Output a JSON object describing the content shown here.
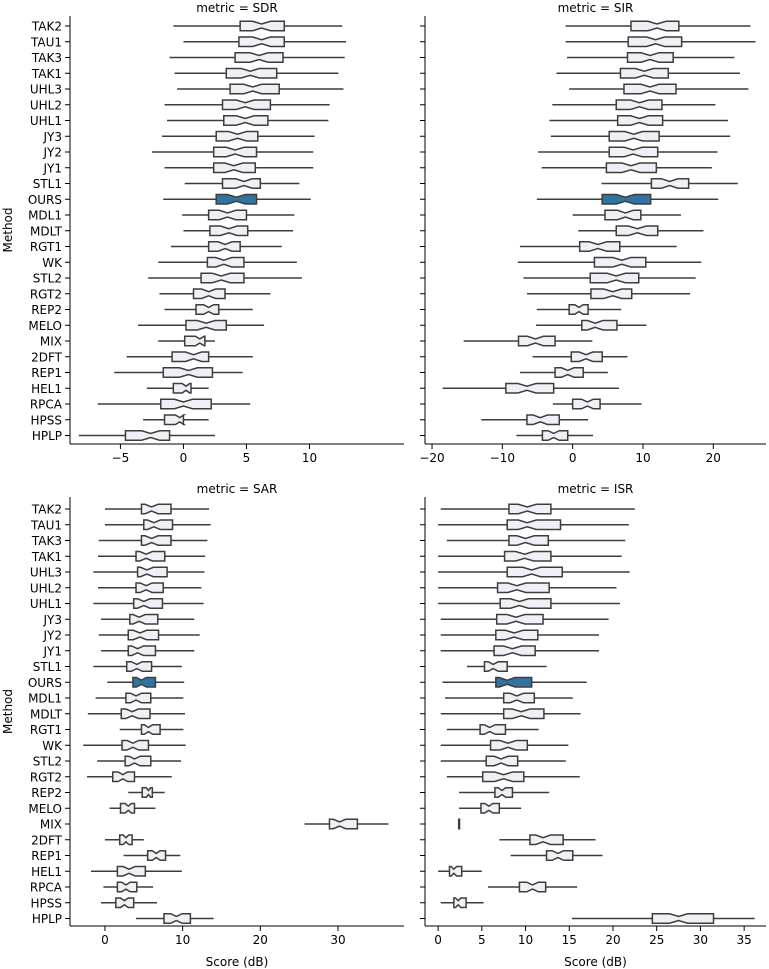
{
  "chart_data": {
    "type": "boxplot",
    "shared_y_axis": {
      "label": "Method",
      "categories": [
        "TAK2",
        "TAU1",
        "TAK3",
        "TAK1",
        "UHL3",
        "UHL2",
        "UHL1",
        "JY3",
        "JY2",
        "JY1",
        "STL1",
        "OURS",
        "MDL1",
        "MDLT",
        "RGT1",
        "WK",
        "STL2",
        "RGT2",
        "REP2",
        "MELO",
        "MIX",
        "2DFT",
        "REP1",
        "HEL1",
        "RPCA",
        "HPSS",
        "HPLP"
      ]
    },
    "x_label": "Score (dB)",
    "highlight": {
      "category": "OURS",
      "color": "#3274a1"
    },
    "box_fill": "#eef0f5",
    "panels": [
      {
        "title": "metric = SDR",
        "xlim": [
          -9,
          17.5
        ],
        "xticks": [
          -5,
          0,
          5,
          10
        ],
        "tick_labels": [
          "−5",
          "0",
          "5",
          "10"
        ],
        "boxes": [
          {
            "lo": -0.8,
            "q1": 4.5,
            "med": 6.2,
            "q3": 8.0,
            "hi": 12.6
          },
          {
            "lo": 0.0,
            "q1": 4.4,
            "med": 6.2,
            "q3": 8.0,
            "hi": 12.9
          },
          {
            "lo": -1.1,
            "q1": 4.1,
            "med": 6.0,
            "q3": 7.9,
            "hi": 12.8
          },
          {
            "lo": -0.7,
            "q1": 3.4,
            "med": 5.3,
            "q3": 7.4,
            "hi": 12.3
          },
          {
            "lo": -0.5,
            "q1": 3.7,
            "med": 5.5,
            "q3": 7.6,
            "hi": 12.7
          },
          {
            "lo": -1.5,
            "q1": 3.1,
            "med": 4.9,
            "q3": 6.9,
            "hi": 11.6
          },
          {
            "lo": -1.3,
            "q1": 3.2,
            "med": 4.9,
            "q3": 6.7,
            "hi": 11.5
          },
          {
            "lo": -1.7,
            "q1": 2.6,
            "med": 4.3,
            "q3": 5.9,
            "hi": 10.4
          },
          {
            "lo": -2.5,
            "q1": 2.4,
            "med": 4.1,
            "q3": 5.8,
            "hi": 10.3
          },
          {
            "lo": -1.5,
            "q1": 2.4,
            "med": 4.0,
            "q3": 5.7,
            "hi": 10.3
          },
          {
            "lo": 0.1,
            "q1": 3.1,
            "med": 4.8,
            "q3": 6.1,
            "hi": 9.2
          },
          {
            "lo": -1.6,
            "q1": 2.6,
            "med": 4.2,
            "q3": 5.8,
            "hi": 10.1
          },
          {
            "lo": -0.1,
            "q1": 2.0,
            "med": 3.5,
            "q3": 5.0,
            "hi": 8.8
          },
          {
            "lo": 0.0,
            "q1": 2.1,
            "med": 3.6,
            "q3": 5.1,
            "hi": 8.7
          },
          {
            "lo": -1.0,
            "q1": 2.0,
            "med": 3.3,
            "q3": 4.5,
            "hi": 7.8
          },
          {
            "lo": -2.0,
            "q1": 1.9,
            "med": 3.2,
            "q3": 4.8,
            "hi": 9.0
          },
          {
            "lo": -2.8,
            "q1": 1.4,
            "med": 3.0,
            "q3": 4.8,
            "hi": 9.4
          },
          {
            "lo": -1.9,
            "q1": 0.8,
            "med": 2.0,
            "q3": 3.3,
            "hi": 6.9
          },
          {
            "lo": -1.5,
            "q1": 1.0,
            "med": 2.0,
            "q3": 2.8,
            "hi": 5.5
          },
          {
            "lo": -3.6,
            "q1": 0.2,
            "med": 1.8,
            "q3": 3.4,
            "hi": 6.4
          },
          {
            "lo": -2.0,
            "q1": 0.1,
            "med": 1.3,
            "q3": 1.7,
            "hi": 2.5
          },
          {
            "lo": -4.5,
            "q1": -0.9,
            "med": 0.8,
            "q3": 2.0,
            "hi": 5.5
          },
          {
            "lo": -5.5,
            "q1": -1.6,
            "med": 0.4,
            "q3": 2.3,
            "hi": 4.7
          },
          {
            "lo": -2.9,
            "q1": -0.8,
            "med": 0.2,
            "q3": 0.6,
            "hi": 2.0
          },
          {
            "lo": -6.8,
            "q1": -1.8,
            "med": 0.0,
            "q3": 2.2,
            "hi": 5.3
          },
          {
            "lo": -3.2,
            "q1": -1.5,
            "med": -0.3,
            "q3": 0.0,
            "hi": 2.0
          },
          {
            "lo": -8.3,
            "q1": -4.6,
            "med": -2.6,
            "q3": -1.1,
            "hi": 2.5
          }
        ]
      },
      {
        "title": "metric = SIR",
        "xlim": [
          -21,
          27.5
        ],
        "xticks": [
          -20,
          -10,
          0,
          10,
          20
        ],
        "tick_labels": [
          "−20",
          "−10",
          "0",
          "10",
          "20"
        ],
        "boxes": [
          {
            "lo": -1.0,
            "q1": 8.3,
            "med": 12.0,
            "q3": 15.1,
            "hi": 25.3
          },
          {
            "lo": -1.0,
            "q1": 7.9,
            "med": 11.8,
            "q3": 15.5,
            "hi": 26.0
          },
          {
            "lo": -0.8,
            "q1": 7.8,
            "med": 11.0,
            "q3": 14.3,
            "hi": 23.0
          },
          {
            "lo": -2.3,
            "q1": 6.8,
            "med": 10.2,
            "q3": 13.6,
            "hi": 23.8
          },
          {
            "lo": -0.5,
            "q1": 7.3,
            "med": 11.0,
            "q3": 14.7,
            "hi": 25.0
          },
          {
            "lo": -2.9,
            "q1": 6.2,
            "med": 9.5,
            "q3": 12.7,
            "hi": 20.3
          },
          {
            "lo": -3.3,
            "q1": 6.4,
            "med": 9.5,
            "q3": 12.8,
            "hi": 22.1
          },
          {
            "lo": -3.1,
            "q1": 5.2,
            "med": 8.7,
            "q3": 12.3,
            "hi": 22.4
          },
          {
            "lo": -4.9,
            "q1": 5.2,
            "med": 8.6,
            "q3": 12.1,
            "hi": 20.6
          },
          {
            "lo": -4.4,
            "q1": 4.8,
            "med": 8.3,
            "q3": 11.9,
            "hi": 19.8
          },
          {
            "lo": 4.1,
            "q1": 11.2,
            "med": 13.8,
            "q3": 16.5,
            "hi": 23.5
          },
          {
            "lo": -5.1,
            "q1": 4.2,
            "med": 7.5,
            "q3": 11.1,
            "hi": 20.7
          },
          {
            "lo": 0.0,
            "q1": 4.6,
            "med": 7.5,
            "q3": 9.7,
            "hi": 15.4
          },
          {
            "lo": 0.8,
            "q1": 6.2,
            "med": 9.2,
            "q3": 12.1,
            "hi": 18.6
          },
          {
            "lo": -7.5,
            "q1": 1.0,
            "med": 3.6,
            "q3": 6.7,
            "hi": 14.8
          },
          {
            "lo": -7.8,
            "q1": 3.1,
            "med": 7.0,
            "q3": 10.4,
            "hi": 18.3
          },
          {
            "lo": -7.0,
            "q1": 2.5,
            "med": 6.2,
            "q3": 9.4,
            "hi": 17.5
          },
          {
            "lo": -6.5,
            "q1": 2.6,
            "med": 5.7,
            "q3": 8.4,
            "hi": 16.7
          },
          {
            "lo": -5.1,
            "q1": -0.5,
            "med": 0.9,
            "q3": 2.2,
            "hi": 6.9
          },
          {
            "lo": -5.2,
            "q1": 1.3,
            "med": 3.2,
            "q3": 6.3,
            "hi": 10.5
          },
          {
            "lo": -15.5,
            "q1": -7.7,
            "med": -5.3,
            "q3": -2.5,
            "hi": 2.8
          },
          {
            "lo": -5.7,
            "q1": -0.2,
            "med": 1.9,
            "q3": 4.2,
            "hi": 7.8
          },
          {
            "lo": -7.5,
            "q1": -2.5,
            "med": -0.7,
            "q3": 1.5,
            "hi": 5.0
          },
          {
            "lo": -18.5,
            "q1": -9.5,
            "med": -6.5,
            "q3": -2.7,
            "hi": 6.6
          },
          {
            "lo": -2.8,
            "q1": 0.0,
            "med": 2.1,
            "q3": 3.9,
            "hi": 9.8
          },
          {
            "lo": -13.0,
            "q1": -6.5,
            "med": -4.6,
            "q3": -1.9,
            "hi": 2.2
          },
          {
            "lo": -8.0,
            "q1": -4.3,
            "med": -2.7,
            "q3": -0.7,
            "hi": 2.9
          }
        ]
      },
      {
        "title": "metric = SAR",
        "xlim": [
          -4.5,
          38.5
        ],
        "xticks": [
          0,
          10,
          20,
          30
        ],
        "tick_labels": [
          "0",
          "10",
          "20",
          "30"
        ],
        "boxes": [
          {
            "lo": 0.0,
            "q1": 4.7,
            "med": 6.0,
            "q3": 8.5,
            "hi": 13.4
          },
          {
            "lo": 0.0,
            "q1": 5.0,
            "med": 6.3,
            "q3": 8.7,
            "hi": 13.6
          },
          {
            "lo": -0.8,
            "q1": 4.7,
            "med": 6.0,
            "q3": 8.5,
            "hi": 13.2
          },
          {
            "lo": -0.9,
            "q1": 4.0,
            "med": 5.3,
            "q3": 7.7,
            "hi": 12.9
          },
          {
            "lo": -1.5,
            "q1": 4.2,
            "med": 5.4,
            "q3": 8.0,
            "hi": 12.8
          },
          {
            "lo": -0.9,
            "q1": 4.0,
            "med": 5.3,
            "q3": 7.5,
            "hi": 12.4
          },
          {
            "lo": -1.5,
            "q1": 3.7,
            "med": 5.0,
            "q3": 7.4,
            "hi": 12.7
          },
          {
            "lo": -0.5,
            "q1": 3.2,
            "med": 4.4,
            "q3": 6.8,
            "hi": 11.5
          },
          {
            "lo": -0.8,
            "q1": 3.0,
            "med": 4.5,
            "q3": 6.9,
            "hi": 12.2
          },
          {
            "lo": -0.5,
            "q1": 3.0,
            "med": 4.2,
            "q3": 6.5,
            "hi": 11.5
          },
          {
            "lo": -1.5,
            "q1": 2.8,
            "med": 4.1,
            "q3": 6.0,
            "hi": 9.9
          },
          {
            "lo": 0.3,
            "q1": 3.6,
            "med": 4.7,
            "q3": 6.5,
            "hi": 10.2
          },
          {
            "lo": -1.2,
            "q1": 2.7,
            "med": 4.0,
            "q3": 5.9,
            "hi": 10.1
          },
          {
            "lo": -2.2,
            "q1": 2.1,
            "med": 3.5,
            "q3": 5.8,
            "hi": 10.3
          },
          {
            "lo": 1.9,
            "q1": 4.7,
            "med": 5.6,
            "q3": 7.1,
            "hi": 10.1
          },
          {
            "lo": -2.8,
            "q1": 2.2,
            "med": 3.6,
            "q3": 5.6,
            "hi": 10.4
          },
          {
            "lo": -1.0,
            "q1": 2.6,
            "med": 3.8,
            "q3": 5.9,
            "hi": 9.8
          },
          {
            "lo": -2.3,
            "q1": 1.0,
            "med": 2.3,
            "q3": 3.8,
            "hi": 8.6
          },
          {
            "lo": 3.0,
            "q1": 4.8,
            "med": 5.6,
            "q3": 6.1,
            "hi": 7.7
          },
          {
            "lo": 0.6,
            "q1": 2.0,
            "med": 3.0,
            "q3": 3.8,
            "hi": 6.5
          },
          {
            "lo": 25.7,
            "q1": 28.9,
            "med": 30.2,
            "q3": 32.5,
            "hi": 36.5
          },
          {
            "lo": 0.0,
            "q1": 1.9,
            "med": 2.7,
            "q3": 3.5,
            "hi": 5.0
          },
          {
            "lo": 2.4,
            "q1": 5.5,
            "med": 6.6,
            "q3": 7.8,
            "hi": 9.7
          },
          {
            "lo": -1.8,
            "q1": 1.6,
            "med": 3.1,
            "q3": 5.2,
            "hi": 9.9
          },
          {
            "lo": -0.2,
            "q1": 1.6,
            "med": 2.7,
            "q3": 4.1,
            "hi": 6.2
          },
          {
            "lo": -0.5,
            "q1": 1.4,
            "med": 2.5,
            "q3": 3.7,
            "hi": 6.7
          },
          {
            "lo": 4.0,
            "q1": 7.6,
            "med": 9.2,
            "q3": 11.0,
            "hi": 14.0
          }
        ]
      },
      {
        "title": "metric = ISR",
        "xlim": [
          -1.5,
          37.5
        ],
        "xticks": [
          0,
          5,
          10,
          15,
          20,
          25,
          30,
          35
        ],
        "tick_labels": [
          "0",
          "5",
          "10",
          "15",
          "20",
          "25",
          "30",
          "35"
        ],
        "boxes": [
          {
            "lo": 0.3,
            "q1": 8.1,
            "med": 10.2,
            "q3": 12.9,
            "hi": 22.5
          },
          {
            "lo": 0.0,
            "q1": 7.9,
            "med": 10.2,
            "q3": 14.0,
            "hi": 21.8
          },
          {
            "lo": 1.0,
            "q1": 8.1,
            "med": 10.0,
            "q3": 12.6,
            "hi": 21.4
          },
          {
            "lo": 0.0,
            "q1": 7.6,
            "med": 9.9,
            "q3": 12.9,
            "hi": 21.0
          },
          {
            "lo": 0.0,
            "q1": 7.9,
            "med": 10.7,
            "q3": 14.2,
            "hi": 21.9
          },
          {
            "lo": 0.0,
            "q1": 6.8,
            "med": 9.0,
            "q3": 12.7,
            "hi": 20.4
          },
          {
            "lo": 0.0,
            "q1": 7.1,
            "med": 9.3,
            "q3": 12.9,
            "hi": 20.8
          },
          {
            "lo": 0.3,
            "q1": 6.7,
            "med": 8.9,
            "q3": 12.0,
            "hi": 19.5
          },
          {
            "lo": 0.3,
            "q1": 6.6,
            "med": 8.7,
            "q3": 11.4,
            "hi": 18.4
          },
          {
            "lo": 0.3,
            "q1": 6.4,
            "med": 8.5,
            "q3": 11.1,
            "hi": 18.4
          },
          {
            "lo": 3.3,
            "q1": 5.3,
            "med": 6.3,
            "q3": 7.9,
            "hi": 12.4
          },
          {
            "lo": 0.5,
            "q1": 6.6,
            "med": 7.9,
            "q3": 10.7,
            "hi": 17.0
          },
          {
            "lo": 0.8,
            "q1": 7.5,
            "med": 9.0,
            "q3": 11.0,
            "hi": 15.4
          },
          {
            "lo": 0.3,
            "q1": 7.5,
            "med": 9.5,
            "q3": 12.1,
            "hi": 16.3
          },
          {
            "lo": 1.0,
            "q1": 4.8,
            "med": 5.9,
            "q3": 7.7,
            "hi": 11.5
          },
          {
            "lo": 0.3,
            "q1": 6.0,
            "med": 8.0,
            "q3": 10.2,
            "hi": 14.9
          },
          {
            "lo": 0.3,
            "q1": 5.5,
            "med": 7.2,
            "q3": 9.1,
            "hi": 14.6
          },
          {
            "lo": 1.0,
            "q1": 5.1,
            "med": 7.5,
            "q3": 9.8,
            "hi": 16.2
          },
          {
            "lo": 2.4,
            "q1": 6.5,
            "med": 7.3,
            "q3": 8.5,
            "hi": 12.7
          },
          {
            "lo": 2.4,
            "q1": 4.9,
            "med": 5.8,
            "q3": 7.0,
            "hi": 9.5
          },
          {
            "lo": 2.3,
            "q1": 2.35,
            "med": 2.4,
            "q3": 2.45,
            "hi": 2.5
          },
          {
            "lo": 7.0,
            "q1": 10.5,
            "med": 12.0,
            "q3": 14.3,
            "hi": 18.0
          },
          {
            "lo": 8.3,
            "q1": 12.4,
            "med": 13.7,
            "q3": 15.4,
            "hi": 18.8
          },
          {
            "lo": 0.0,
            "q1": 1.3,
            "med": 1.8,
            "q3": 2.7,
            "hi": 5.0
          },
          {
            "lo": 5.7,
            "q1": 9.3,
            "med": 10.8,
            "q3": 12.3,
            "hi": 15.9
          },
          {
            "lo": 0.3,
            "q1": 1.8,
            "med": 2.3,
            "q3": 3.2,
            "hi": 5.2
          },
          {
            "lo": 15.3,
            "q1": 24.5,
            "med": 27.5,
            "q3": 31.5,
            "hi": 36.2
          }
        ]
      }
    ]
  }
}
